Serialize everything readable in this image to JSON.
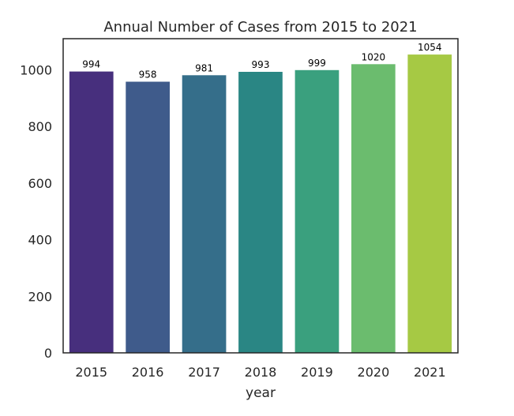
{
  "chart_data": {
    "type": "bar",
    "title": "Annual Number of Cases from 2015 to 2021",
    "xlabel": "year",
    "ylabel": "",
    "categories": [
      "2015",
      "2016",
      "2017",
      "2018",
      "2019",
      "2020",
      "2021"
    ],
    "values": [
      994,
      958,
      981,
      993,
      999,
      1020,
      1054
    ],
    "data_labels": [
      "994",
      "958",
      "981",
      "993",
      "999",
      "1020",
      "1054"
    ],
    "colors": [
      "#472f7d",
      "#3f5b8b",
      "#356e8a",
      "#2a8684",
      "#3aa07e",
      "#6bbc6e",
      "#a6c944"
    ],
    "ylim": [
      0,
      1110
    ],
    "yticks": [
      0,
      200,
      400,
      600,
      800,
      1000
    ],
    "ytick_labels": [
      "0",
      "200",
      "400",
      "600",
      "800",
      "1000"
    ],
    "grid": false,
    "legend": "none"
  }
}
